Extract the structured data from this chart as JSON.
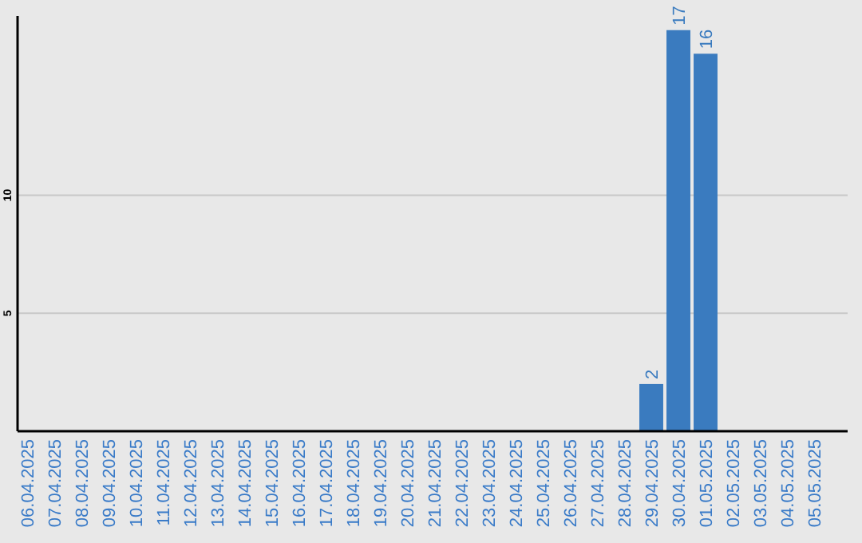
{
  "chart_data": {
    "type": "bar",
    "categories": [
      "06.04.2025",
      "07.04.2025",
      "08.04.2025",
      "09.04.2025",
      "10.04.2025",
      "11.04.2025",
      "12.04.2025",
      "13.04.2025",
      "14.04.2025",
      "15.04.2025",
      "16.04.2025",
      "17.04.2025",
      "18.04.2025",
      "19.04.2025",
      "20.04.2025",
      "21.04.2025",
      "22.04.2025",
      "23.04.2025",
      "24.04.2025",
      "25.04.2025",
      "26.04.2025",
      "27.04.2025",
      "28.04.2025",
      "29.04.2025",
      "30.04.2025",
      "01.05.2025",
      "02.05.2025",
      "03.05.2025",
      "04.05.2025",
      "05.05.2025"
    ],
    "values": [
      0,
      0,
      0,
      0,
      0,
      0,
      0,
      0,
      0,
      0,
      0,
      0,
      0,
      0,
      0,
      0,
      0,
      0,
      0,
      0,
      0,
      0,
      0,
      2,
      17,
      16,
      0,
      0,
      0,
      0
    ],
    "value_labels": [
      null,
      null,
      null,
      null,
      null,
      null,
      null,
      null,
      null,
      null,
      null,
      null,
      null,
      null,
      null,
      null,
      null,
      null,
      null,
      null,
      null,
      null,
      null,
      "2",
      "17",
      "16",
      null,
      null,
      null,
      null
    ],
    "color": "#3a7bbf",
    "ylim": [
      0,
      17.6
    ],
    "yticks": [
      5,
      10
    ],
    "grid": "y"
  }
}
